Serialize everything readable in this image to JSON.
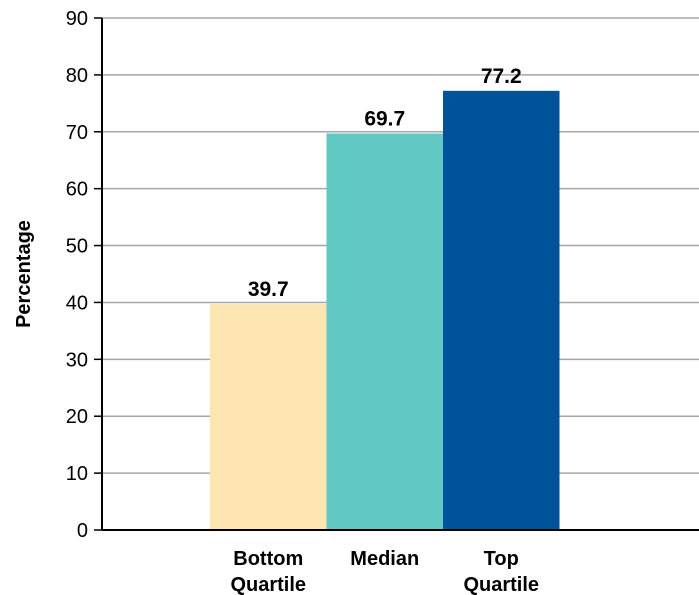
{
  "chart_data": {
    "type": "bar",
    "title": "",
    "xlabel": "",
    "ylabel": "Percentage",
    "ylim": [
      0,
      90
    ],
    "yticks": [
      0,
      10,
      20,
      30,
      40,
      50,
      60,
      70,
      80,
      90
    ],
    "grid": true,
    "legend": "none",
    "categories": [
      [
        "Bottom",
        "Quartile"
      ],
      [
        "Median"
      ],
      [
        "Top",
        "Quartile"
      ]
    ],
    "values": [
      39.7,
      69.7,
      77.2
    ],
    "data_labels": [
      "39.7",
      "69.7",
      "77.2"
    ],
    "colors": [
      "#fde5b1",
      "#62c8c3",
      "#00539b"
    ],
    "grid_color": "#a6a6a6",
    "axis_color": "#000000"
  }
}
